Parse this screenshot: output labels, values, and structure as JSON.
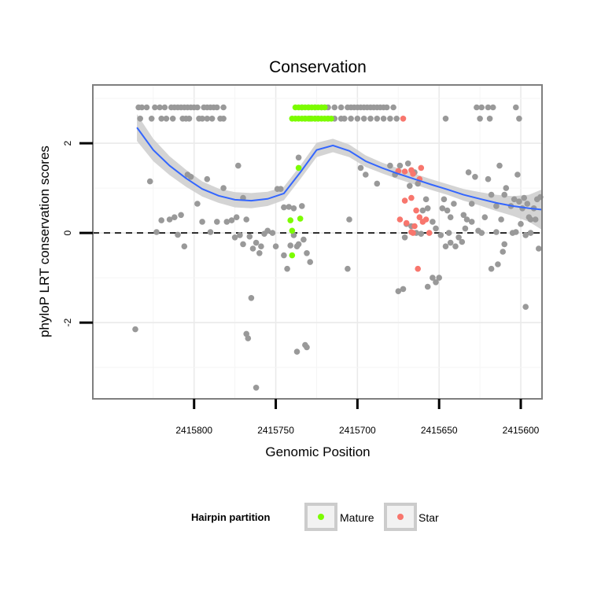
{
  "chart_data": {
    "type": "scatter",
    "title": "Conservation",
    "xlabel": "Genomic Position",
    "ylabel": "phyloP LRT conservation scores",
    "x_reversed": true,
    "xlim": [
      2415587,
      2415862
    ],
    "ylim": [
      -3.7,
      3.3
    ],
    "x_ticks": [
      2415800,
      2415750,
      2415700,
      2415650,
      2415600
    ],
    "y_ticks": [
      -2,
      0,
      2
    ],
    "reference_line": {
      "y": 0,
      "style": "dashed"
    },
    "grid": true,
    "colors": {
      "other": "#999999",
      "mature": "#7cfc00",
      "star": "#f8766d",
      "smooth": "#3366ff",
      "band": "#cccccc"
    },
    "legend": {
      "title": "Hairpin partition",
      "position": "bottom",
      "entries": [
        {
          "label": "Mature",
          "color": "#7cfc00"
        },
        {
          "label": "Star",
          "color": "#f8766d"
        }
      ]
    },
    "smooth": {
      "x": [
        2415835,
        2415825,
        2415815,
        2415805,
        2415795,
        2415785,
        2415775,
        2415765,
        2415755,
        2415745,
        2415735,
        2415725,
        2415715,
        2415705,
        2415695,
        2415685,
        2415675,
        2415665,
        2415655,
        2415645,
        2415635,
        2415625,
        2415615,
        2415605,
        2415595,
        2415587
      ],
      "y": [
        2.35,
        1.85,
        1.5,
        1.22,
        0.98,
        0.83,
        0.74,
        0.72,
        0.76,
        0.88,
        1.35,
        1.85,
        1.95,
        1.83,
        1.6,
        1.45,
        1.32,
        1.2,
        1.08,
        0.97,
        0.85,
        0.76,
        0.67,
        0.6,
        0.55,
        0.52
      ],
      "ci_halfwidth": [
        0.3,
        0.25,
        0.21,
        0.19,
        0.17,
        0.16,
        0.17,
        0.17,
        0.16,
        0.15,
        0.15,
        0.16,
        0.15,
        0.14,
        0.13,
        0.12,
        0.12,
        0.12,
        0.12,
        0.12,
        0.13,
        0.15,
        0.18,
        0.22,
        0.3,
        0.45
      ]
    },
    "series": [
      {
        "name": "Other",
        "points": [
          [
            2415834,
            2.8
          ],
          [
            2415832,
            2.8
          ],
          [
            2415829,
            2.8
          ],
          [
            2415824,
            2.8
          ],
          [
            2415821,
            2.8
          ],
          [
            2415818,
            2.8
          ],
          [
            2415814,
            2.8
          ],
          [
            2415812,
            2.8
          ],
          [
            2415810,
            2.8
          ],
          [
            2415808,
            2.8
          ],
          [
            2415806,
            2.8
          ],
          [
            2415804,
            2.8
          ],
          [
            2415802,
            2.8
          ],
          [
            2415800,
            2.8
          ],
          [
            2415798,
            2.8
          ],
          [
            2415794,
            2.8
          ],
          [
            2415792,
            2.8
          ],
          [
            2415790,
            2.8
          ],
          [
            2415788,
            2.8
          ],
          [
            2415786,
            2.8
          ],
          [
            2415782,
            2.8
          ],
          [
            2415833,
            2.55
          ],
          [
            2415826,
            2.55
          ],
          [
            2415820,
            2.55
          ],
          [
            2415817,
            2.55
          ],
          [
            2415813,
            2.55
          ],
          [
            2415807,
            2.55
          ],
          [
            2415805,
            2.55
          ],
          [
            2415803,
            2.55
          ],
          [
            2415797,
            2.55
          ],
          [
            2415795,
            2.55
          ],
          [
            2415792,
            2.55
          ],
          [
            2415789,
            2.55
          ],
          [
            2415784,
            2.55
          ],
          [
            2415782,
            2.55
          ],
          [
            2415734,
            2.8
          ],
          [
            2415730,
            2.8
          ],
          [
            2415726,
            2.8
          ],
          [
            2415722,
            2.8
          ],
          [
            2415720,
            2.8
          ],
          [
            2415718,
            2.8
          ],
          [
            2415714,
            2.8
          ],
          [
            2415710,
            2.8
          ],
          [
            2415706,
            2.8
          ],
          [
            2415704,
            2.8
          ],
          [
            2415702,
            2.8
          ],
          [
            2415700,
            2.8
          ],
          [
            2415698,
            2.8
          ],
          [
            2415696,
            2.8
          ],
          [
            2415694,
            2.8
          ],
          [
            2415692,
            2.8
          ],
          [
            2415690,
            2.8
          ],
          [
            2415688,
            2.8
          ],
          [
            2415686,
            2.8
          ],
          [
            2415684,
            2.8
          ],
          [
            2415682,
            2.8
          ],
          [
            2415678,
            2.8
          ],
          [
            2415732,
            2.55
          ],
          [
            2415729,
            2.55
          ],
          [
            2415726,
            2.55
          ],
          [
            2415724,
            2.55
          ],
          [
            2415718,
            2.55
          ],
          [
            2415714,
            2.55
          ],
          [
            2415710,
            2.55
          ],
          [
            2415708,
            2.55
          ],
          [
            2415704,
            2.55
          ],
          [
            2415700,
            2.55
          ],
          [
            2415696,
            2.55
          ],
          [
            2415692,
            2.55
          ],
          [
            2415688,
            2.55
          ],
          [
            2415684,
            2.55
          ],
          [
            2415680,
            2.55
          ],
          [
            2415676,
            2.55
          ],
          [
            2415627,
            2.8
          ],
          [
            2415624,
            2.8
          ],
          [
            2415620,
            2.8
          ],
          [
            2415617,
            2.8
          ],
          [
            2415603,
            2.8
          ],
          [
            2415625,
            2.55
          ],
          [
            2415619,
            2.55
          ],
          [
            2415646,
            2.55
          ],
          [
            2415601,
            2.55
          ],
          [
            2415836,
            -2.15
          ],
          [
            2415827,
            1.15
          ],
          [
            2415820,
            0.28
          ],
          [
            2415823,
            0.02
          ],
          [
            2415815,
            0.3
          ],
          [
            2415812,
            0.35
          ],
          [
            2415810,
            -0.04
          ],
          [
            2415808,
            0.4
          ],
          [
            2415806,
            -0.3
          ],
          [
            2415804,
            1.3
          ],
          [
            2415802,
            1.25
          ],
          [
            2415798,
            0.65
          ],
          [
            2415795,
            0.25
          ],
          [
            2415792,
            1.2
          ],
          [
            2415790,
            0.02
          ],
          [
            2415786,
            0.25
          ],
          [
            2415782,
            1.0
          ],
          [
            2415780,
            0.25
          ],
          [
            2415777,
            0.28
          ],
          [
            2415775,
            -0.1
          ],
          [
            2415774,
            0.35
          ],
          [
            2415772,
            -0.05
          ],
          [
            2415770,
            -0.25
          ],
          [
            2415768,
            0.3
          ],
          [
            2415766,
            -0.08
          ],
          [
            2415764,
            -0.35
          ],
          [
            2415762,
            -0.22
          ],
          [
            2415760,
            -0.45
          ],
          [
            2415759,
            -0.3
          ],
          [
            2415757,
            -0.02
          ],
          [
            2415755,
            0.05
          ],
          [
            2415752,
            0.0
          ],
          [
            2415750,
            -0.3
          ],
          [
            2415745,
            -0.5
          ],
          [
            2415743,
            -0.8
          ],
          [
            2415741,
            -0.28
          ],
          [
            2415739,
            -0.05
          ],
          [
            2415737,
            -0.3
          ],
          [
            2415736,
            -0.25
          ],
          [
            2415733,
            -0.15
          ],
          [
            2415731,
            -0.45
          ],
          [
            2415729,
            -0.65
          ],
          [
            2415773,
            1.5
          ],
          [
            2415770,
            0.78
          ],
          [
            2415765,
            -1.45
          ],
          [
            2415768,
            -2.25
          ],
          [
            2415767,
            -2.35
          ],
          [
            2415762,
            -3.45
          ],
          [
            2415749,
            0.98
          ],
          [
            2415747,
            0.98
          ],
          [
            2415745,
            0.57
          ],
          [
            2415742,
            0.58
          ],
          [
            2415739,
            0.55
          ],
          [
            2415736,
            1.68
          ],
          [
            2415734,
            0.6
          ],
          [
            2415737,
            -2.65
          ],
          [
            2415732,
            -2.5
          ],
          [
            2415731,
            -2.55
          ],
          [
            2415705,
            0.3
          ],
          [
            2415706,
            -0.8
          ],
          [
            2415698,
            1.45
          ],
          [
            2415695,
            1.3
          ],
          [
            2415688,
            1.1
          ],
          [
            2415680,
            1.5
          ],
          [
            2415677,
            1.3
          ],
          [
            2415674,
            1.5
          ],
          [
            2415670,
            0.2
          ],
          [
            2415668,
            1.05
          ],
          [
            2415675,
            -1.3
          ],
          [
            2415672,
            -1.25
          ],
          [
            2415669,
            1.55
          ],
          [
            2415665,
            1.35
          ],
          [
            2415663,
            1.1
          ],
          [
            2415660,
            0.5
          ],
          [
            2415657,
            0.55
          ],
          [
            2415654,
            0.25
          ],
          [
            2415652,
            0.1
          ],
          [
            2415649,
            -0.05
          ],
          [
            2415647,
            0.75
          ],
          [
            2415645,
            0.5
          ],
          [
            2415643,
            -0.22
          ],
          [
            2415641,
            0.65
          ],
          [
            2415638,
            -0.1
          ],
          [
            2415636,
            -0.2
          ],
          [
            2415634,
            0.1
          ],
          [
            2415632,
            1.35
          ],
          [
            2415630,
            0.25
          ],
          [
            2415628,
            1.25
          ],
          [
            2415626,
            0.05
          ],
          [
            2415624,
            0.0
          ],
          [
            2415622,
            0.35
          ],
          [
            2415620,
            1.2
          ],
          [
            2415618,
            0.85
          ],
          [
            2415615,
            0.02
          ],
          [
            2415612,
            0.3
          ],
          [
            2415610,
            -0.25
          ],
          [
            2415606,
            0.6
          ],
          [
            2415604,
            0.75
          ],
          [
            2415602,
            1.3
          ],
          [
            2415600,
            0.2
          ],
          [
            2415598,
            0.78
          ],
          [
            2415596,
            0.65
          ],
          [
            2415594,
            0.0
          ],
          [
            2415592,
            0.55
          ],
          [
            2415590,
            0.75
          ],
          [
            2415588,
            0.8
          ],
          [
            2415589,
            -0.35
          ],
          [
            2415591,
            0.3
          ],
          [
            2415595,
            0.35
          ],
          [
            2415597,
            -0.05
          ],
          [
            2415601,
            0.7
          ],
          [
            2415599,
            0.55
          ],
          [
            2415646,
            -0.3
          ],
          [
            2415650,
            -1.0
          ],
          [
            2415652,
            -1.1
          ],
          [
            2415657,
            -1.2
          ],
          [
            2415648,
            0.55
          ],
          [
            2415643,
            0.35
          ],
          [
            2415611,
            -0.42
          ],
          [
            2415613,
            1.5
          ],
          [
            2415609,
            1.0
          ],
          [
            2415614,
            -0.7
          ],
          [
            2415605,
            0.0
          ],
          [
            2415603,
            0.02
          ],
          [
            2415610,
            0.85
          ],
          [
            2415615,
            0.6
          ],
          [
            2415618,
            -0.8
          ],
          [
            2415630,
            0.65
          ],
          [
            2415633,
            0.3
          ],
          [
            2415635,
            0.4
          ],
          [
            2415640,
            -0.3
          ],
          [
            2415644,
            0.0
          ],
          [
            2415654,
            -1.0
          ],
          [
            2415658,
            0.75
          ],
          [
            2415661,
            -0.02
          ],
          [
            2415664,
            0.0
          ],
          [
            2415667,
            0.15
          ],
          [
            2415671,
            -0.1
          ],
          [
            2415597,
            -1.65
          ],
          [
            2415594,
            0.3
          ]
        ]
      },
      {
        "name": "Mature",
        "points": [
          [
            2415738,
            2.8
          ],
          [
            2415736,
            2.8
          ],
          [
            2415734,
            2.8
          ],
          [
            2415732,
            2.8
          ],
          [
            2415730,
            2.8
          ],
          [
            2415728,
            2.8
          ],
          [
            2415726,
            2.8
          ],
          [
            2415724,
            2.8
          ],
          [
            2415722,
            2.8
          ],
          [
            2415720,
            2.8
          ],
          [
            2415740,
            2.55
          ],
          [
            2415738,
            2.55
          ],
          [
            2415736,
            2.55
          ],
          [
            2415734,
            2.55
          ],
          [
            2415732,
            2.55
          ],
          [
            2415730,
            2.55
          ],
          [
            2415728,
            2.55
          ],
          [
            2415726,
            2.55
          ],
          [
            2415724,
            2.55
          ],
          [
            2415722,
            2.55
          ],
          [
            2415720,
            2.55
          ],
          [
            2415718,
            2.55
          ],
          [
            2415716,
            2.55
          ],
          [
            2415736,
            1.45
          ],
          [
            2415741,
            0.28
          ],
          [
            2415735,
            0.32
          ],
          [
            2415740,
            0.05
          ],
          [
            2415740,
            -0.5
          ]
        ]
      },
      {
        "name": "Star",
        "points": [
          [
            2415672,
            2.55
          ],
          [
            2415675,
            1.38
          ],
          [
            2415671,
            1.37
          ],
          [
            2415667,
            1.4
          ],
          [
            2415666,
            1.32
          ],
          [
            2415661,
            1.45
          ],
          [
            2415662,
            1.2
          ],
          [
            2415671,
            0.72
          ],
          [
            2415667,
            0.78
          ],
          [
            2415664,
            0.5
          ],
          [
            2415670,
            0.22
          ],
          [
            2415667,
            0.02
          ],
          [
            2415665,
            0.15
          ],
          [
            2415662,
            0.35
          ],
          [
            2415660,
            0.25
          ],
          [
            2415658,
            0.3
          ],
          [
            2415656,
            0.0
          ],
          [
            2415663,
            -0.8
          ],
          [
            2415666,
            0.0
          ],
          [
            2415674,
            0.3
          ]
        ]
      }
    ]
  }
}
